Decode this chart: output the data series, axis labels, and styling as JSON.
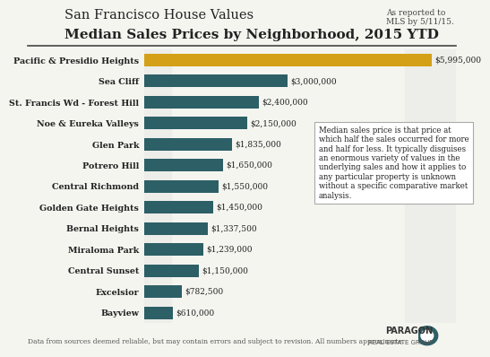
{
  "title_line1": "San Francisco House Values",
  "title_line2": "Median Sales Prices by Neighborhood, 2015 YTD",
  "subtitle_note": "As reported to\nMLS by 5/11/15.",
  "categories": [
    "Bayview",
    "Excelsior",
    "Central Sunset",
    "Miraloma Park",
    "Bernal Heights",
    "Golden Gate Heights",
    "Central Richmond",
    "Potrero Hill",
    "Glen Park",
    "Noe & Eureka Valleys",
    "St. Francis Wd - Forest Hill",
    "Sea Cliff",
    "Pacific & Presidio Heights"
  ],
  "values": [
    610000,
    782500,
    1150000,
    1239000,
    1337500,
    1450000,
    1550000,
    1650000,
    1835000,
    2150000,
    2400000,
    3000000,
    5995000
  ],
  "labels": [
    "$610,000",
    "$782,500",
    "$1,150,000",
    "$1,239,000",
    "$1,337,500",
    "$1,450,000",
    "$1,550,000",
    "$1,650,000",
    "$1,835,000",
    "$2,150,000",
    "$2,400,000",
    "$3,000,000",
    "$5,995,000"
  ],
  "bar_colors": [
    "#2d5f67",
    "#2d5f67",
    "#2d5f67",
    "#2d5f67",
    "#2d5f67",
    "#2d5f67",
    "#2d5f67",
    "#2d5f67",
    "#2d5f67",
    "#2d5f67",
    "#2d5f67",
    "#2d5f67",
    "#d4a017"
  ],
  "bg_color": "#f5f5f0",
  "annotation_text": "Median sales price is that price at\nwhich half the sales occurred for more\nand half for less. It typically disguises\nan enormous variety of values in the\nunderlying sales and how it applies to\nany particular property is unknown\nwithout a specific comparative market\nanalysis.",
  "footer_text": "Data from sources deemed reliable, but may contain errors and subject to revision. All numbers approximate.",
  "xlim": [
    0,
    6500000
  ]
}
